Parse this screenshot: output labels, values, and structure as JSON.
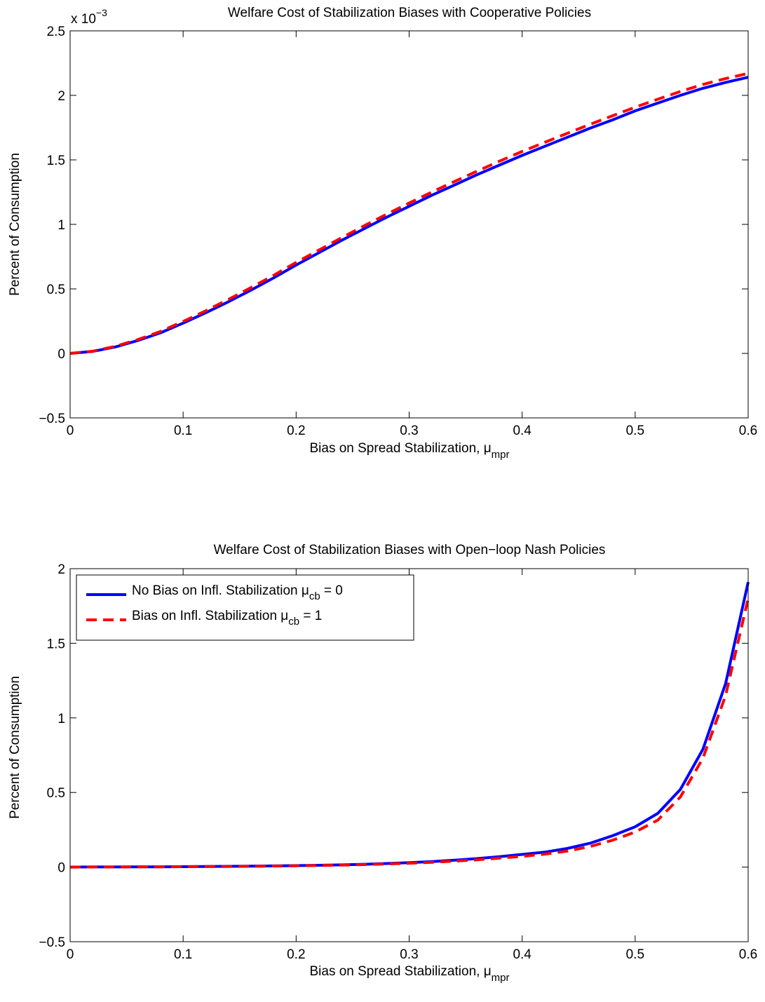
{
  "chart_data": [
    {
      "type": "line",
      "title": "Welfare Cost of Stabilization Biases with Cooperative Policies",
      "xlabel_text": "Bias on Spread Stabilization, ",
      "xlabel_greek": "μ",
      "xlabel_sub": "mpr",
      "ylabel": "Percent of Consumption",
      "exponent_base": "x 10",
      "exponent_power": "−3",
      "xlim": [
        0,
        0.6
      ],
      "ylim": [
        -0.5,
        2.5
      ],
      "xticks": [
        "0",
        "0.1",
        "0.2",
        "0.3",
        "0.4",
        "0.5",
        "0.6"
      ],
      "yticks": [
        "−0.5",
        "0",
        "0.5",
        "1",
        "1.5",
        "2",
        "2.5"
      ],
      "grid": false,
      "series": [
        {
          "color": "#0000ff",
          "style": "solid",
          "x": [
            0,
            0.02,
            0.04,
            0.06,
            0.08,
            0.1,
            0.12,
            0.14,
            0.16,
            0.18,
            0.2,
            0.22,
            0.24,
            0.26,
            0.28,
            0.3,
            0.32,
            0.34,
            0.36,
            0.38,
            0.4,
            0.42,
            0.44,
            0.46,
            0.48,
            0.5,
            0.52,
            0.54,
            0.56,
            0.58,
            0.6
          ],
          "values": [
            0,
            0.015,
            0.05,
            0.1,
            0.16,
            0.235,
            0.315,
            0.4,
            0.49,
            0.585,
            0.685,
            0.78,
            0.875,
            0.965,
            1.055,
            1.14,
            1.225,
            1.305,
            1.385,
            1.46,
            1.535,
            1.605,
            1.675,
            1.745,
            1.81,
            1.88,
            1.94,
            2.0,
            2.055,
            2.1,
            2.14
          ]
        },
        {
          "color": "#ff0000",
          "style": "dashed",
          "x": [
            0,
            0.02,
            0.04,
            0.06,
            0.08,
            0.1,
            0.12,
            0.14,
            0.16,
            0.18,
            0.2,
            0.22,
            0.24,
            0.26,
            0.28,
            0.3,
            0.32,
            0.34,
            0.36,
            0.38,
            0.4,
            0.42,
            0.44,
            0.46,
            0.48,
            0.5,
            0.52,
            0.54,
            0.56,
            0.58,
            0.6
          ],
          "values": [
            0,
            0.017,
            0.055,
            0.107,
            0.17,
            0.248,
            0.33,
            0.418,
            0.51,
            0.605,
            0.705,
            0.8,
            0.895,
            0.988,
            1.078,
            1.165,
            1.25,
            1.332,
            1.412,
            1.49,
            1.565,
            1.636,
            1.706,
            1.775,
            1.842,
            1.908,
            1.97,
            2.03,
            2.085,
            2.13,
            2.17
          ]
        }
      ]
    },
    {
      "type": "line",
      "title": "Welfare Cost of Stabilization Biases with Open−loop Nash Policies",
      "xlabel_text": "Bias on Spread Stabilization, ",
      "xlabel_greek": "μ",
      "xlabel_sub": "mpr",
      "ylabel": "Percent of Consumption",
      "xlim": [
        0,
        0.6
      ],
      "ylim": [
        -0.5,
        2
      ],
      "xticks": [
        "0",
        "0.1",
        "0.2",
        "0.3",
        "0.4",
        "0.5",
        "0.6"
      ],
      "yticks": [
        "−0.5",
        "0",
        "0.5",
        "1",
        "1.5",
        "2"
      ],
      "grid": false,
      "legend": "top-left",
      "series": [
        {
          "name_text": "No Bias on Infl. Stabilization ",
          "name_greek": "μ",
          "name_sub": "cb",
          "name_tail": " = 0",
          "color": "#0000ff",
          "style": "solid",
          "x": [
            0,
            0.02,
            0.04,
            0.06,
            0.08,
            0.1,
            0.12,
            0.14,
            0.16,
            0.18,
            0.2,
            0.22,
            0.24,
            0.26,
            0.28,
            0.3,
            0.32,
            0.34,
            0.36,
            0.38,
            0.4,
            0.42,
            0.44,
            0.46,
            0.48,
            0.5,
            0.52,
            0.54,
            0.56,
            0.58,
            0.6
          ],
          "values": [
            0,
            0.001,
            0.001,
            0.002,
            0.002,
            0.003,
            0.004,
            0.005,
            0.006,
            0.008,
            0.01,
            0.012,
            0.015,
            0.019,
            0.024,
            0.03,
            0.037,
            0.046,
            0.057,
            0.07,
            0.085,
            0.1,
            0.125,
            0.16,
            0.21,
            0.27,
            0.36,
            0.52,
            0.79,
            1.23,
            1.91
          ]
        },
        {
          "name_text": "Bias on Infl. Stabilization ",
          "name_greek": "μ",
          "name_sub": "cb",
          "name_tail": " = 1",
          "color": "#ff0000",
          "style": "dashed",
          "x": [
            0,
            0.02,
            0.04,
            0.06,
            0.08,
            0.1,
            0.12,
            0.14,
            0.16,
            0.18,
            0.2,
            0.22,
            0.24,
            0.26,
            0.28,
            0.3,
            0.32,
            0.34,
            0.36,
            0.38,
            0.4,
            0.42,
            0.44,
            0.46,
            0.48,
            0.5,
            0.52,
            0.54,
            0.56,
            0.58,
            0.6
          ],
          "values": [
            0,
            0.001,
            0.001,
            0.002,
            0.002,
            0.003,
            0.004,
            0.004,
            0.005,
            0.007,
            0.009,
            0.011,
            0.013,
            0.017,
            0.021,
            0.026,
            0.032,
            0.04,
            0.049,
            0.06,
            0.072,
            0.087,
            0.107,
            0.138,
            0.18,
            0.235,
            0.315,
            0.47,
            0.73,
            1.15,
            1.8
          ]
        }
      ]
    }
  ]
}
